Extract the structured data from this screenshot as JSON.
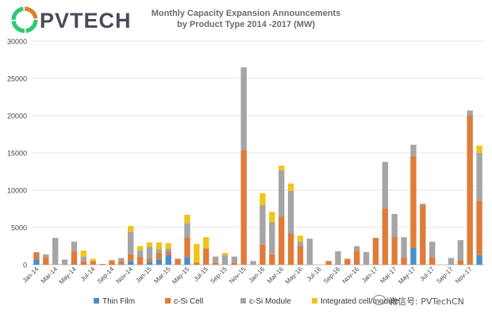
{
  "brand": {
    "logo_text": "PVTECH",
    "colors": [
      "#9b59b6",
      "#3498db",
      "#2ecc71",
      "#e67e22"
    ]
  },
  "watermark": {
    "text": "微信号: PVTechCN"
  },
  "chart_data": {
    "type": "bar",
    "stacked": true,
    "title": "Monthly Capacity Expansion Announcements by Product Type 2014 -2017 (MW)",
    "title_lines": [
      "Monthly Capacity Expansion Announcements",
      "by Product Type 2014 -2017 (MW)"
    ],
    "ylim": [
      0,
      30000
    ],
    "yticks": [
      0,
      5000,
      10000,
      15000,
      20000,
      25000,
      30000
    ],
    "ytick_labels": [
      "0",
      "5000",
      "10000",
      "15000",
      "20000",
      "25000",
      "30000"
    ],
    "grid": true,
    "legend_position": "bottom",
    "categories": [
      "Jan-14",
      "Feb-14",
      "Mar-14",
      "Apr-14",
      "May-14",
      "Jun-14",
      "Jul-14",
      "Aug-14",
      "Sep-14",
      "Oct-14",
      "Nov-14",
      "Dec-14",
      "Jan-15",
      "Feb-15",
      "Mar-15",
      "Apr-15",
      "May-15",
      "Jun-15",
      "Jul-15",
      "Aug-15",
      "Sep-15",
      "Oct-15",
      "Nov-15",
      "Dec-15",
      "Jan-16",
      "Feb-16",
      "Mar-16",
      "Apr-16",
      "May-16",
      "Jun-16",
      "Jul-16",
      "Aug-16",
      "Sep-16",
      "Oct-16",
      "Nov-16",
      "Dec-16",
      "Jan-17",
      "Feb-17",
      "Mar-17",
      "Apr-17",
      "May-17",
      "Jun-17",
      "Jul-17",
      "Aug-17",
      "Sep-17",
      "Oct-17",
      "Nov-17",
      "Dec-17"
    ],
    "labeled_categories": [
      "Jan-14",
      "Mar-14",
      "May-14",
      "Jul-14",
      "Sep-14",
      "Nov-14",
      "Jan-15",
      "Mar-15",
      "May-15",
      "Jul-15",
      "Sep-15",
      "Nov-15",
      "Jan-16",
      "Mar-16",
      "May-16",
      "Jul-16",
      "Sep-16",
      "Nov-16",
      "Jan-17",
      "Mar-17",
      "May-17",
      "Jul-17",
      "Sep-17",
      "Nov-17"
    ],
    "series": [
      {
        "name": "Thin Film",
        "color": "#4a8ec7",
        "values": [
          700,
          0,
          0,
          0,
          0,
          0,
          0,
          0,
          0,
          0,
          500,
          0,
          400,
          700,
          1300,
          0,
          1000,
          0,
          0,
          0,
          0,
          0,
          0,
          0,
          0,
          0,
          0,
          0,
          0,
          0,
          0,
          0,
          0,
          0,
          0,
          0,
          0,
          0,
          0,
          0,
          2300,
          0,
          0,
          0,
          0,
          0,
          0,
          1300
        ]
      },
      {
        "name": "c-Si Cell",
        "color": "#e07b39",
        "values": [
          900,
          1000,
          0,
          0,
          1800,
          500,
          500,
          100,
          600,
          500,
          900,
          1100,
          400,
          900,
          500,
          800,
          2700,
          300,
          2200,
          300,
          0,
          300,
          15400,
          0,
          2700,
          1400,
          6500,
          4200,
          2500,
          0,
          0,
          500,
          0,
          800,
          1800,
          0,
          3600,
          7500,
          3800,
          1000,
          12300,
          8000,
          1000,
          0,
          0,
          600,
          20000,
          7300
        ]
      },
      {
        "name": "c-Si Module",
        "color": "#a5a5a5",
        "values": [
          100,
          400,
          3600,
          700,
          1300,
          600,
          0,
          0,
          0,
          400,
          3000,
          800,
          1600,
          500,
          400,
          0,
          1900,
          0,
          0,
          800,
          1300,
          800,
          11100,
          500,
          5300,
          4300,
          6200,
          5700,
          600,
          3500,
          0,
          0,
          1800,
          0,
          700,
          1700,
          0,
          6300,
          3000,
          2700,
          1500,
          200,
          2100,
          0,
          900,
          2700,
          700,
          6400
        ]
      },
      {
        "name": "Integrated cell/module",
        "color": "#f0c419",
        "values": [
          0,
          0,
          0,
          0,
          0,
          800,
          300,
          0,
          0,
          0,
          800,
          600,
          600,
          900,
          700,
          0,
          1100,
          2500,
          1500,
          0,
          300,
          0,
          0,
          0,
          1600,
          1400,
          600,
          1000,
          800,
          0,
          0,
          0,
          0,
          0,
          0,
          0,
          0,
          0,
          0,
          0,
          0,
          0,
          0,
          0,
          0,
          0,
          0,
          1000
        ]
      }
    ]
  }
}
